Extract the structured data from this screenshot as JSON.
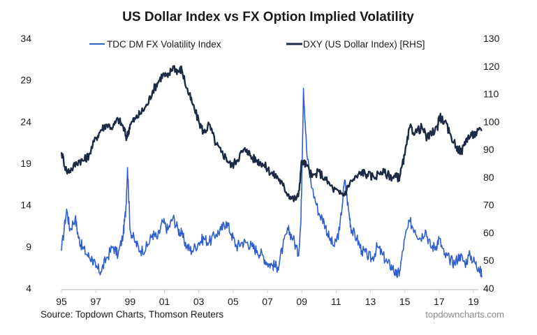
{
  "chart_data": {
    "type": "line",
    "title": "US Dollar Index vs FX Option Implied Volatility",
    "xlabel": "",
    "ylabel_left": "",
    "ylabel_right": "",
    "x_ticks": [
      "95",
      "97",
      "99",
      "01",
      "03",
      "05",
      "07",
      "09",
      "11",
      "13",
      "15",
      "17",
      "19"
    ],
    "x_range": [
      1995.0,
      2019.6
    ],
    "y_left": {
      "ticks": [
        34,
        29,
        24,
        19,
        14,
        9,
        4
      ],
      "range": [
        4,
        34
      ]
    },
    "y_right": {
      "ticks": [
        130,
        120,
        110,
        100,
        90,
        80,
        70,
        60,
        50,
        40
      ],
      "range": [
        40,
        130
      ]
    },
    "grid": false,
    "legend_position": "top",
    "series": [
      {
        "name": "TDC DM FX Volatility Index",
        "axis": "left",
        "color": "#2f5fce",
        "x": [
          1995.0,
          1995.3,
          1995.5,
          1995.8,
          1996.0,
          1996.2,
          1996.5,
          1996.8,
          1997.0,
          1997.3,
          1997.6,
          1998.0,
          1998.3,
          1998.6,
          1998.75,
          1998.85,
          1999.0,
          1999.3,
          1999.6,
          2000.0,
          2000.3,
          2000.6,
          2000.9,
          2001.2,
          2001.5,
          2001.8,
          2002.0,
          2002.3,
          2002.6,
          2003.0,
          2003.3,
          2003.6,
          2004.0,
          2004.3,
          2004.6,
          2004.9,
          2005.2,
          2005.5,
          2005.8,
          2006.1,
          2006.4,
          2006.7,
          2007.0,
          2007.3,
          2007.6,
          2007.9,
          2008.2,
          2008.5,
          2008.8,
          2008.95,
          2009.1,
          2009.3,
          2009.6,
          2010.0,
          2010.3,
          2010.6,
          2010.9,
          2011.2,
          2011.5,
          2011.75,
          2011.9,
          2012.2,
          2012.5,
          2012.8,
          2013.1,
          2013.4,
          2013.7,
          2014.0,
          2014.3,
          2014.5,
          2014.7,
          2015.0,
          2015.3,
          2015.6,
          2015.9,
          2016.2,
          2016.5,
          2016.8,
          2017.0,
          2017.3,
          2017.6,
          2017.9,
          2018.2,
          2018.5,
          2018.8,
          2019.1,
          2019.3,
          2019.5
        ],
        "values": [
          8.5,
          13.5,
          11,
          12.5,
          10,
          9,
          8,
          7.5,
          6.5,
          6,
          7.5,
          9,
          8,
          10.5,
          13.5,
          18.5,
          11,
          9.5,
          8.5,
          9,
          10.5,
          10,
          12,
          11,
          12.5,
          11,
          10.5,
          9,
          8.5,
          9.5,
          10,
          9.5,
          10.5,
          11,
          12,
          10.5,
          9,
          9.5,
          9.5,
          9,
          8.5,
          8,
          7,
          6.8,
          6.5,
          9,
          11,
          10,
          8,
          12,
          28,
          20,
          16,
          13,
          12,
          10,
          9,
          11,
          17,
          13,
          11,
          10,
          8.5,
          8,
          7.5,
          9,
          8,
          7,
          6.5,
          5.5,
          6,
          10,
          12,
          11,
          10,
          11,
          9,
          9,
          10,
          8,
          7.5,
          7,
          8,
          7,
          8,
          7,
          6.5,
          5.5
        ]
      },
      {
        "name": "DXY (US Dollar Index) [RHS]",
        "axis": "right",
        "color": "#1c2a45",
        "x": [
          1995.0,
          1995.3,
          1995.6,
          1996.0,
          1996.3,
          1996.6,
          1997.0,
          1997.3,
          1997.6,
          1998.0,
          1998.3,
          1998.6,
          1998.8,
          1999.0,
          1999.3,
          1999.6,
          2000.0,
          2000.3,
          2000.6,
          2000.9,
          2001.2,
          2001.5,
          2001.8,
          2002.0,
          2002.3,
          2002.6,
          2003.0,
          2003.3,
          2003.6,
          2004.0,
          2004.3,
          2004.6,
          2004.9,
          2005.2,
          2005.5,
          2005.8,
          2006.1,
          2006.4,
          2006.7,
          2007.0,
          2007.3,
          2007.6,
          2007.9,
          2008.2,
          2008.5,
          2008.8,
          2009.0,
          2009.3,
          2009.6,
          2010.0,
          2010.4,
          2010.8,
          2011.2,
          2011.5,
          2011.8,
          2012.2,
          2012.5,
          2012.8,
          2013.2,
          2013.6,
          2014.0,
          2014.3,
          2014.5,
          2014.7,
          2015.0,
          2015.3,
          2015.6,
          2016.0,
          2016.3,
          2016.6,
          2016.9,
          2017.0,
          2017.3,
          2017.6,
          2018.0,
          2018.3,
          2018.6,
          2018.9,
          2019.2,
          2019.5
        ],
        "values": [
          89,
          82,
          83,
          86,
          86,
          88,
          94,
          97,
          99,
          98,
          101,
          98,
          94,
          99,
          101,
          103,
          106,
          111,
          114,
          117,
          116,
          120,
          118,
          119,
          112,
          107,
          100,
          96,
          99,
          92,
          89,
          87,
          84,
          86,
          89,
          90,
          87,
          86,
          85,
          83,
          81,
          80,
          77,
          74,
          72,
          73,
          86,
          84,
          80,
          82,
          79,
          76,
          74,
          74,
          78,
          80,
          82,
          81,
          80,
          82,
          81,
          80,
          80,
          80,
          88,
          98,
          96,
          98,
          94,
          96,
          98,
          102,
          100,
          96,
          91,
          89,
          94,
          95,
          96,
          97
        ]
      }
    ],
    "source": "Source: Topdown Charts, Thomson Reuters",
    "watermark": "topdowncharts.com"
  }
}
